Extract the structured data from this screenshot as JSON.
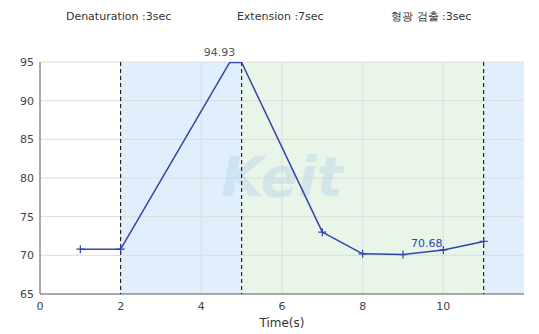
{
  "chart_data": {
    "type": "line",
    "xlabel": "Time(s)",
    "header_labels": [
      "Denaturation :3sec",
      "Extension :7sec",
      "형광 검출 :3sec"
    ],
    "annotations": [
      {
        "text": "94.93",
        "x": 4.45,
        "y": 94.93
      },
      {
        "text": "70.68",
        "x": 9.15,
        "y": 70.7
      }
    ],
    "watermark": "Keit",
    "series": [
      {
        "type": "line",
        "color": "#3344aa",
        "x": [
          1,
          2,
          4.7,
          5,
          7,
          8,
          9,
          10,
          11
        ],
        "values": [
          70.8,
          70.8,
          94.93,
          94.93,
          73.0,
          70.2,
          70.1,
          70.7,
          71.8
        ]
      },
      {
        "type": "scatter",
        "marker": "plus",
        "color": "#3344aa",
        "x": [
          1,
          2,
          7,
          8,
          9,
          10,
          11
        ],
        "values": [
          70.8,
          70.8,
          73.0,
          70.2,
          70.1,
          70.7,
          71.8
        ]
      }
    ],
    "vlines": [
      2,
      5,
      11
    ],
    "vline_color": "black",
    "regions": [
      {
        "x0": 2,
        "x1": 5,
        "color": "#cce5f8"
      },
      {
        "x0": 5,
        "x1": 11,
        "color": "#d8efd8"
      },
      {
        "x0": 11,
        "x1": 12,
        "color": "#cce5f8"
      }
    ],
    "xlim": [
      0,
      12
    ],
    "ylim": [
      65,
      95
    ],
    "xticks": [
      0,
      2,
      4,
      6,
      8,
      10
    ],
    "yticks": [
      65,
      70,
      75,
      80,
      85,
      90,
      95
    ],
    "grid": true
  }
}
